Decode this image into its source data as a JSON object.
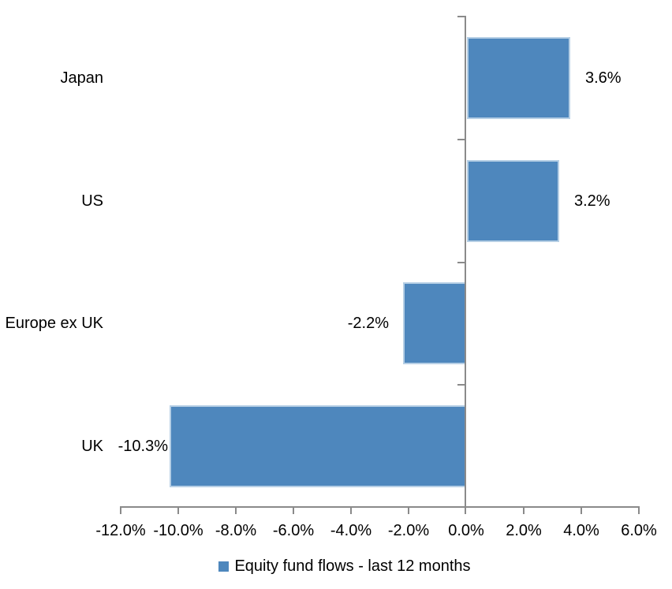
{
  "chart_data": {
    "type": "bar",
    "orientation": "horizontal",
    "title": "",
    "categories": [
      "Japan",
      "US",
      "Europe ex UK",
      "UK"
    ],
    "series": [
      {
        "name": "Equity fund flows - last 12 months",
        "values": [
          3.6,
          3.2,
          -2.2,
          -10.3
        ],
        "data_labels": [
          "3.6%",
          "3.2%",
          "-2.2%",
          "-10.3%"
        ]
      }
    ],
    "x_axis": {
      "min": -12,
      "max": 6,
      "tick_step": 2,
      "tick_labels": [
        "-12.0%",
        "-10.0%",
        "-8.0%",
        "-6.0%",
        "-4.0%",
        "-2.0%",
        "0.0%",
        "2.0%",
        "4.0%",
        "6.0%"
      ]
    },
    "y_axis": {
      "label": ""
    },
    "legend": {
      "position": "bottom",
      "label": "Equity fund flows - last 12 months"
    },
    "colors": {
      "bar_fill": "#4E87BD",
      "bar_border": "#B6CFE5",
      "axis_line": "#8A8A8A",
      "text": "#000000",
      "background": "#FFFFFF"
    },
    "grid": false
  }
}
